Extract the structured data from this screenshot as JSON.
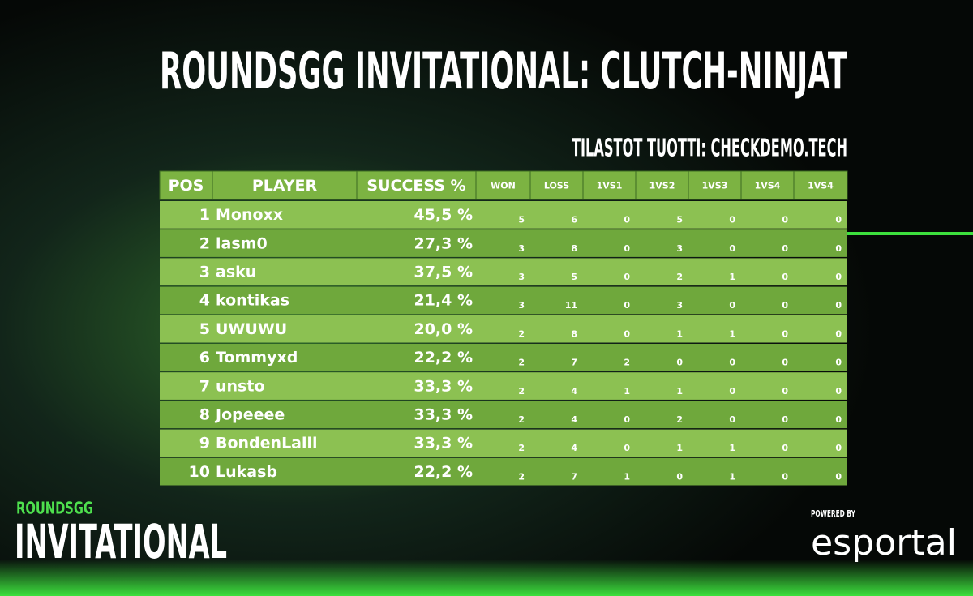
{
  "header": {
    "title": "ROUNDSGG INVITATIONAL: CLUTCH-NINJAT",
    "subtitle": "TILASTOT TUOTTI: CHECKDEMO.TECH"
  },
  "table": {
    "columns": [
      "POS",
      "PLAYER",
      "SUCCESS %",
      "WON",
      "LOSS",
      "1VS1",
      "1VS2",
      "1VS3",
      "1VS4",
      "1VS4"
    ],
    "rows": [
      [
        1,
        "Monoxx",
        "45,5 %",
        5,
        6,
        0,
        5,
        0,
        0,
        0
      ],
      [
        2,
        "lasm0",
        "27,3 %",
        3,
        8,
        0,
        3,
        0,
        0,
        0
      ],
      [
        3,
        "asku",
        "37,5 %",
        3,
        5,
        0,
        2,
        1,
        0,
        0
      ],
      [
        4,
        "kontikas",
        "21,4 %",
        3,
        11,
        0,
        3,
        0,
        0,
        0
      ],
      [
        5,
        "UWUWU",
        "20,0 %",
        2,
        8,
        0,
        1,
        1,
        0,
        0
      ],
      [
        6,
        "Tommyxd",
        "22,2 %",
        2,
        7,
        2,
        0,
        0,
        0,
        0
      ],
      [
        7,
        "unsto",
        "33,3 %",
        2,
        4,
        1,
        1,
        0,
        0,
        0
      ],
      [
        8,
        "Jopeeee",
        "33,3 %",
        2,
        4,
        0,
        2,
        0,
        0,
        0
      ],
      [
        9,
        "BondenLalli",
        "33,3 %",
        2,
        4,
        0,
        1,
        1,
        0,
        0
      ],
      [
        10,
        "Lukasb",
        "22,2 %",
        2,
        7,
        1,
        0,
        1,
        0,
        0
      ]
    ]
  },
  "logo": {
    "brand": "ROUNDSGG",
    "event": "INVITATIONAL"
  },
  "sponsor": {
    "label": "POWERED BY",
    "name": "esportal"
  }
}
